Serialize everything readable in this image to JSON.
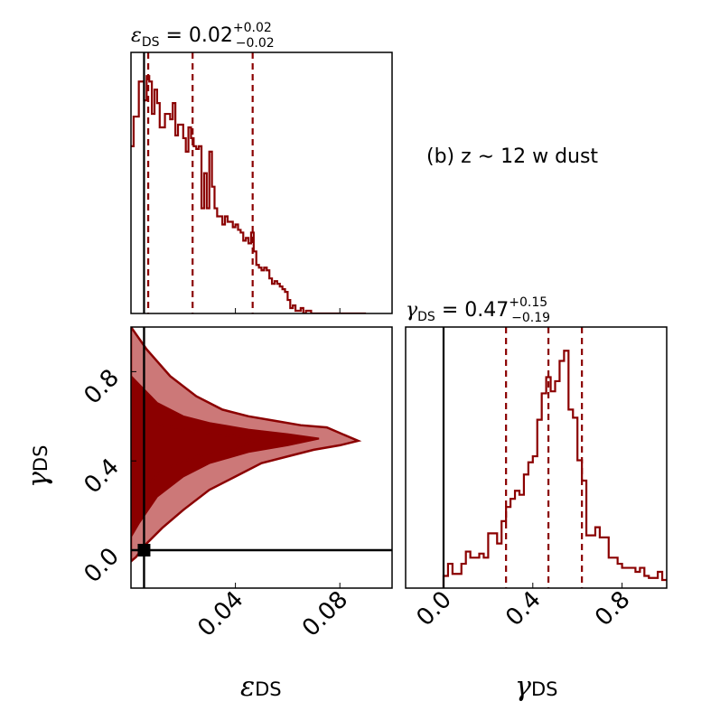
{
  "chart_data": [
    {
      "panel": "marginal-eps",
      "type": "histogram",
      "title": {
        "symbol": "ε",
        "sub": "DS",
        "eq": " = 0.02",
        "sup": "+0.02",
        "inf": "−0.02"
      },
      "xlim": [
        0.0,
        0.1
      ],
      "x_ticks": [
        0.04,
        0.08
      ],
      "median": 0.0236,
      "quantiles": [
        0.0066,
        0.0236,
        0.0466
      ],
      "truth": 0.005,
      "bin_edges": [
        0.0,
        0.001,
        0.002,
        0.003,
        0.004,
        0.005,
        0.006,
        0.007,
        0.008,
        0.009,
        0.01,
        0.011,
        0.012,
        0.013,
        0.014,
        0.015,
        0.016,
        0.017,
        0.018,
        0.019,
        0.02,
        0.021,
        0.022,
        0.023,
        0.024,
        0.025,
        0.026,
        0.027,
        0.028,
        0.029,
        0.03,
        0.031,
        0.032,
        0.033,
        0.034,
        0.035,
        0.036,
        0.037,
        0.038,
        0.039,
        0.04,
        0.041,
        0.042,
        0.043,
        0.044,
        0.045,
        0.046,
        0.047,
        0.048,
        0.049,
        0.05,
        0.051,
        0.052,
        0.053,
        0.054,
        0.055,
        0.056,
        0.057,
        0.058,
        0.059,
        0.06,
        0.061,
        0.062,
        0.063,
        0.064,
        0.065,
        0.066,
        0.067,
        0.068,
        0.069,
        0.07,
        0.071,
        0.072,
        0.073,
        0.074,
        0.075,
        0.076,
        0.077,
        0.078,
        0.079,
        0.08,
        0.081,
        0.082,
        0.083,
        0.084,
        0.085,
        0.086,
        0.087,
        0.088,
        0.089,
        0.09
      ],
      "counts": [
        62,
        73,
        73,
        86,
        86,
        79,
        88,
        86,
        74,
        83,
        78,
        69,
        69,
        74,
        74,
        72,
        78,
        66,
        70,
        70,
        65,
        60,
        69,
        65,
        62,
        61,
        62,
        39,
        52,
        39,
        60,
        47,
        39,
        36,
        36,
        33,
        36,
        34,
        34,
        32,
        33,
        31,
        30,
        27,
        28,
        26,
        30,
        23,
        18,
        17,
        16,
        17,
        16,
        13,
        11,
        12,
        11,
        10,
        9,
        8,
        5,
        2,
        3,
        1,
        1,
        2,
        0,
        1,
        1,
        0,
        0,
        0,
        0,
        0,
        0,
        0,
        0,
        0,
        0,
        0,
        0,
        0,
        0,
        0,
        0,
        0,
        0,
        0,
        0,
        0
      ]
    },
    {
      "panel": "joint",
      "type": "contour",
      "xlim": [
        0.0,
        0.1
      ],
      "ylim": [
        -0.17,
        1.0
      ],
      "x_ticks": [
        0.04,
        0.08
      ],
      "y_ticks": [
        0.0,
        0.4,
        0.8
      ],
      "xlabel": {
        "symbol": "ε",
        "sub": "DS"
      },
      "ylabel": {
        "symbol": "γ",
        "sub": "DS"
      },
      "truth": {
        "x": 0.005,
        "y": 0.0
      },
      "outer_contour": [
        [
          0.0,
          1.0
        ],
        [
          0.006,
          0.9
        ],
        [
          0.015,
          0.78
        ],
        [
          0.025,
          0.69
        ],
        [
          0.035,
          0.63
        ],
        [
          0.045,
          0.6
        ],
        [
          0.055,
          0.58
        ],
        [
          0.065,
          0.56
        ],
        [
          0.075,
          0.55
        ],
        [
          0.083,
          0.51
        ],
        [
          0.087,
          0.49
        ],
        [
          0.08,
          0.47
        ],
        [
          0.07,
          0.45
        ],
        [
          0.06,
          0.42
        ],
        [
          0.05,
          0.39
        ],
        [
          0.04,
          0.33
        ],
        [
          0.03,
          0.27
        ],
        [
          0.02,
          0.18
        ],
        [
          0.012,
          0.1
        ],
        [
          0.006,
          0.03
        ],
        [
          0.002,
          -0.03
        ],
        [
          0.0,
          -0.05
        ]
      ],
      "inner_contour": [
        [
          0.0,
          0.78
        ],
        [
          0.01,
          0.66
        ],
        [
          0.02,
          0.6
        ],
        [
          0.03,
          0.57
        ],
        [
          0.045,
          0.54
        ],
        [
          0.06,
          0.52
        ],
        [
          0.072,
          0.5
        ],
        [
          0.06,
          0.47
        ],
        [
          0.045,
          0.44
        ],
        [
          0.03,
          0.39
        ],
        [
          0.02,
          0.33
        ],
        [
          0.01,
          0.24
        ],
        [
          0.003,
          0.12
        ],
        [
          0.0,
          0.06
        ]
      ],
      "core_contour": [
        [
          0.0,
          0.63
        ],
        [
          0.012,
          0.56
        ],
        [
          0.03,
          0.52
        ],
        [
          0.05,
          0.5
        ],
        [
          0.04,
          0.46
        ],
        [
          0.025,
          0.42
        ],
        [
          0.012,
          0.36
        ],
        [
          0.004,
          0.27
        ],
        [
          0.0,
          0.22
        ]
      ]
    },
    {
      "panel": "marginal-gamma",
      "type": "histogram",
      "title": {
        "symbol": "γ",
        "sub": "DS",
        "eq": " = 0.47",
        "sup": "+0.15",
        "inf": "−0.19"
      },
      "xlim": [
        -0.17,
        1.0
      ],
      "x_ticks": [
        0.0,
        0.4,
        0.8
      ],
      "median": 0.47,
      "quantiles": [
        0.28,
        0.47,
        0.62
      ],
      "truth": 0.0,
      "bin_edges": [
        0.0,
        0.02,
        0.04,
        0.06,
        0.08,
        0.1,
        0.12,
        0.14,
        0.16,
        0.18,
        0.2,
        0.22,
        0.24,
        0.26,
        0.28,
        0.3,
        0.32,
        0.34,
        0.36,
        0.38,
        0.4,
        0.42,
        0.44,
        0.46,
        0.48,
        0.5,
        0.52,
        0.54,
        0.56,
        0.58,
        0.6,
        0.62,
        0.64,
        0.66,
        0.68,
        0.7,
        0.72,
        0.74,
        0.76,
        0.78,
        0.8,
        0.82,
        0.84,
        0.86,
        0.88,
        0.9,
        0.92,
        0.94,
        0.96,
        0.98,
        1.0
      ],
      "counts": [
        6,
        12,
        7,
        7,
        12,
        18,
        15,
        15,
        17,
        15,
        27,
        27,
        22,
        33,
        40,
        44,
        48,
        46,
        56,
        62,
        65,
        83,
        96,
        104,
        97,
        102,
        112,
        117,
        88,
        84,
        63,
        53,
        26,
        26,
        30,
        25,
        25,
        15,
        15,
        12,
        10,
        10,
        10,
        8,
        10,
        6,
        5,
        5,
        8,
        4
      ]
    }
  ],
  "annotation": "(b) z ∼  12 w dust",
  "colors": {
    "hist": "#8b0000",
    "contour_fill_light": "#cc7878",
    "contour_line": "#8b0000",
    "truth": "#000000",
    "axes": "#000000"
  }
}
